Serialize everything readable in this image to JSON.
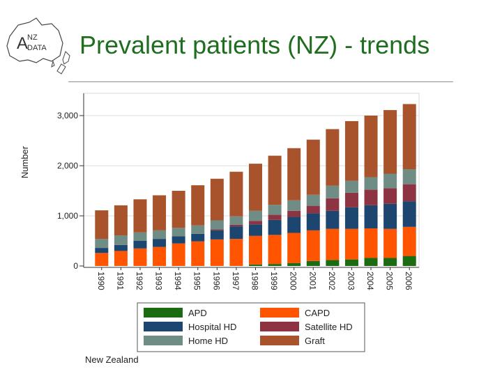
{
  "slide": {
    "title": "Prevalent patients (NZ) - trends",
    "footer": "New Zealand",
    "logo_text": {
      "a": "A",
      "nz": "NZ",
      "data": "DATA"
    }
  },
  "colors": {
    "title": "#1f6e1f",
    "APD": "#1a6b12",
    "CAPD": "#ff5500",
    "Hospital HD": "#1c4570",
    "Satellite HD": "#8d3342",
    "Home HD": "#6f8d84",
    "Graft": "#a8532c"
  },
  "chart_data": {
    "type": "bar",
    "stacked": true,
    "title": "",
    "xlabel": "",
    "ylabel": "Number",
    "ylim": [
      0,
      3300
    ],
    "yticks": [
      0,
      1000,
      2000,
      3000
    ],
    "ytick_labels": [
      "0",
      "1,000",
      "2,000",
      "3,000"
    ],
    "grid": true,
    "legend_position": "bottom",
    "categories": [
      "1990",
      "1991",
      "1992",
      "1993",
      "1994",
      "1995",
      "1996",
      "1997",
      "1998",
      "1999",
      "2000",
      "2001",
      "2002",
      "2003",
      "2004",
      "2005",
      "2006"
    ],
    "series": [
      {
        "name": "APD",
        "values": [
          0,
          0,
          0,
          0,
          0,
          0,
          0,
          0,
          30,
          40,
          60,
          100,
          120,
          130,
          160,
          160,
          200
        ]
      },
      {
        "name": "CAPD",
        "values": [
          260,
          300,
          350,
          380,
          450,
          490,
          530,
          540,
          570,
          580,
          600,
          610,
          620,
          610,
          590,
          580,
          580
        ]
      },
      {
        "name": "Hospital HD",
        "values": [
          100,
          120,
          150,
          160,
          140,
          150,
          180,
          250,
          230,
          300,
          320,
          340,
          360,
          430,
          460,
          500,
          510
        ]
      },
      {
        "name": "Satellite HD",
        "values": [
          0,
          0,
          0,
          0,
          0,
          0,
          20,
          30,
          70,
          100,
          120,
          150,
          250,
          290,
          310,
          310,
          340
        ]
      },
      {
        "name": "Home HD",
        "values": [
          180,
          190,
          170,
          170,
          170,
          170,
          180,
          170,
          200,
          200,
          210,
          220,
          250,
          240,
          250,
          290,
          300
        ]
      },
      {
        "name": "Graft",
        "values": [
          570,
          600,
          660,
          700,
          740,
          800,
          830,
          890,
          940,
          980,
          1040,
          1100,
          1130,
          1190,
          1230,
          1270,
          1300
        ]
      }
    ]
  }
}
